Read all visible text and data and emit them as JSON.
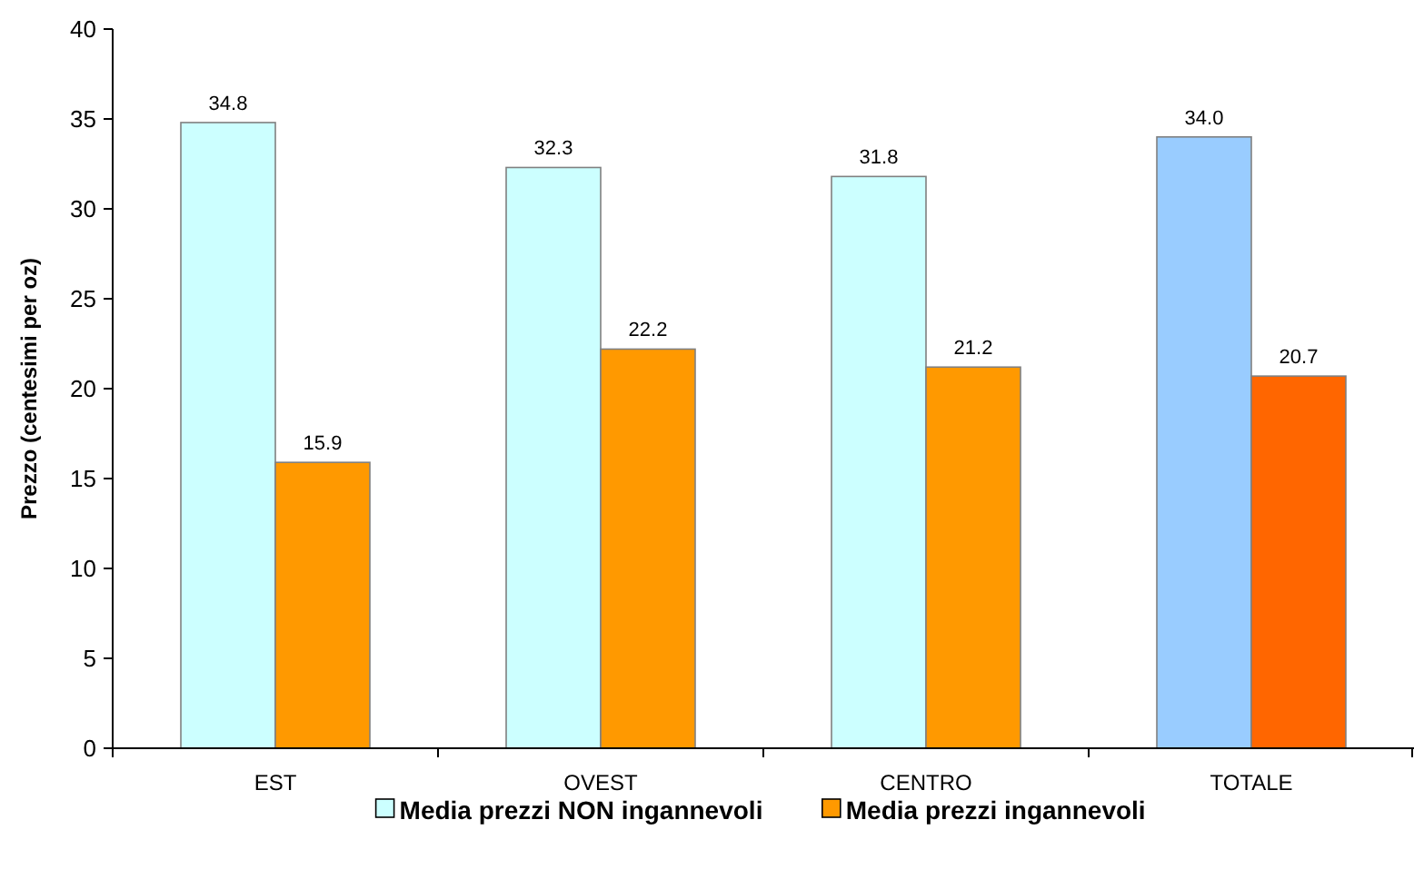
{
  "chart_data": {
    "type": "bar",
    "ylabel": "Prezzo (centesimi per oz)",
    "categories": [
      "EST",
      "OVEST",
      "CENTRO",
      "TOTALE"
    ],
    "series": [
      {
        "name": "Media prezzi NON ingannevoli",
        "colors": [
          "#ccffff",
          "#ccffff",
          "#ccffff",
          "#99ccff"
        ],
        "values": [
          34.8,
          32.3,
          31.8,
          34.0
        ],
        "value_labels": [
          "34.8",
          "32.3",
          "31.8",
          "34.0"
        ]
      },
      {
        "name": "Media prezzi ingannevoli",
        "colors": [
          "#ff9900",
          "#ff9900",
          "#ff9900",
          "#ff6600"
        ],
        "values": [
          15.9,
          22.2,
          21.2,
          20.7
        ],
        "value_labels": [
          "15.9",
          "22.2",
          "21.2",
          "20.7"
        ]
      }
    ],
    "ylim": [
      0,
      40
    ],
    "yticks": [
      0,
      5,
      10,
      15,
      20,
      25,
      30,
      35,
      40
    ],
    "grid": false,
    "legend": "bottom"
  }
}
